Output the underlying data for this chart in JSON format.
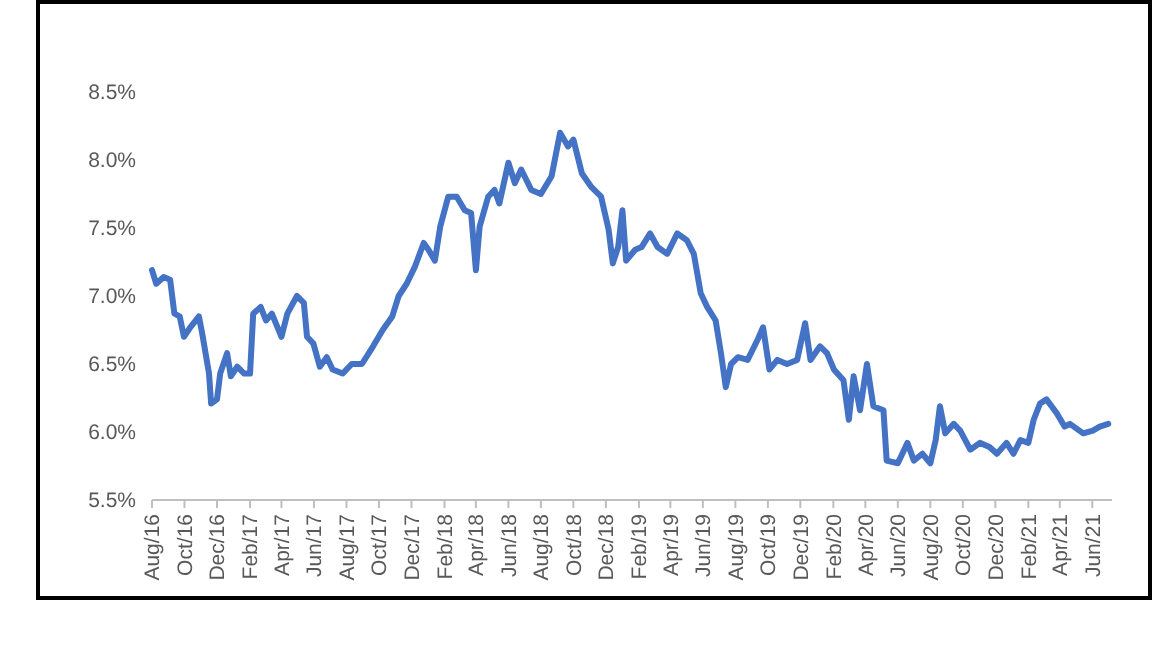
{
  "chart_data": {
    "type": "line",
    "x": [
      "2016-08-01",
      "2016-08-09",
      "2016-08-23",
      "2016-09-04",
      "2016-09-12",
      "2016-09-22",
      "2016-09-30",
      "2016-10-12",
      "2016-10-28",
      "2016-11-03",
      "2016-11-16",
      "2016-11-20",
      "2016-12-01",
      "2016-12-07",
      "2016-12-20",
      "2016-12-27",
      "2017-01-08",
      "2017-01-21",
      "2017-02-01",
      "2017-02-07",
      "2017-02-21",
      "2017-03-03",
      "2017-03-14",
      "2017-04-01",
      "2017-04-12",
      "2017-04-30",
      "2017-05-13",
      "2017-05-19",
      "2017-05-31",
      "2017-06-12",
      "2017-06-25",
      "2017-07-06",
      "2017-07-25",
      "2017-08-11",
      "2017-08-30",
      "2017-09-20",
      "2017-10-08",
      "2017-10-26",
      "2017-11-07",
      "2017-11-22",
      "2017-12-08",
      "2017-12-24",
      "2018-01-02",
      "2018-01-14",
      "2018-01-24",
      "2018-02-08",
      "2018-02-24",
      "2018-03-11",
      "2018-03-23",
      "2018-04-01",
      "2018-04-08",
      "2018-04-24",
      "2018-05-06",
      "2018-05-15",
      "2018-06-01",
      "2018-06-13",
      "2018-06-25",
      "2018-07-14",
      "2018-08-01",
      "2018-08-21",
      "2018-09-06",
      "2018-09-21",
      "2018-10-01",
      "2018-10-17",
      "2018-11-04",
      "2018-11-22",
      "2018-12-06",
      "2018-12-14",
      "2018-12-24",
      "2019-01-01",
      "2019-01-08",
      "2019-01-25",
      "2019-02-06",
      "2019-02-22",
      "2019-03-08",
      "2019-03-26",
      "2019-04-14",
      "2019-05-02",
      "2019-05-15",
      "2019-05-28",
      "2019-06-09",
      "2019-06-25",
      "2019-07-05",
      "2019-07-14",
      "2019-07-24",
      "2019-08-06",
      "2019-08-24",
      "2019-09-12",
      "2019-09-22",
      "2019-10-04",
      "2019-10-19",
      "2019-11-06",
      "2019-11-25",
      "2019-12-10",
      "2019-12-20",
      "2020-01-07",
      "2020-01-20",
      "2020-02-02",
      "2020-02-20",
      "2020-03-01",
      "2020-03-10",
      "2020-03-22",
      "2020-04-04",
      "2020-04-16",
      "2020-05-05",
      "2020-05-11",
      "2020-06-01",
      "2020-06-19",
      "2020-07-01",
      "2020-07-17",
      "2020-08-01",
      "2020-08-11",
      "2020-08-19",
      "2020-08-29",
      "2020-09-14",
      "2020-09-26",
      "2020-10-15",
      "2020-11-02",
      "2020-11-20",
      "2020-12-04",
      "2020-12-22",
      "2021-01-04",
      "2021-01-17",
      "2021-02-01",
      "2021-02-11",
      "2021-02-23",
      "2021-03-07",
      "2021-03-26",
      "2021-04-10",
      "2021-04-20",
      "2021-05-15",
      "2021-06-02",
      "2021-06-15",
      "2021-07-01"
    ],
    "series": [
      {
        "color": "#4472c4",
        "values": [
          7.19,
          7.09,
          7.14,
          7.12,
          6.87,
          6.85,
          6.7,
          6.77,
          6.85,
          6.73,
          6.43,
          6.21,
          6.24,
          6.43,
          6.58,
          6.41,
          6.48,
          6.43,
          6.43,
          6.87,
          6.92,
          6.82,
          6.87,
          6.7,
          6.87,
          7.0,
          6.95,
          6.7,
          6.65,
          6.48,
          6.55,
          6.46,
          6.43,
          6.5,
          6.5,
          6.63,
          6.75,
          6.85,
          7.0,
          7.09,
          7.22,
          7.39,
          7.34,
          7.26,
          7.51,
          7.73,
          7.73,
          7.63,
          7.61,
          7.19,
          7.51,
          7.73,
          7.78,
          7.68,
          7.98,
          7.83,
          7.93,
          7.78,
          7.75,
          7.88,
          8.2,
          8.1,
          8.15,
          7.9,
          7.8,
          7.73,
          7.49,
          7.24,
          7.36,
          7.63,
          7.26,
          7.34,
          7.36,
          7.46,
          7.36,
          7.31,
          7.46,
          7.41,
          7.31,
          7.02,
          6.92,
          6.82,
          6.58,
          6.33,
          6.5,
          6.55,
          6.53,
          6.68,
          6.77,
          6.46,
          6.53,
          6.5,
          6.53,
          6.8,
          6.53,
          6.63,
          6.58,
          6.46,
          6.38,
          6.09,
          6.41,
          6.16,
          6.5,
          6.19,
          6.16,
          5.79,
          5.77,
          5.92,
          5.79,
          5.84,
          5.77,
          5.94,
          6.19,
          5.99,
          6.06,
          6.01,
          5.87,
          5.92,
          5.89,
          5.84,
          5.92,
          5.84,
          5.94,
          5.92,
          6.09,
          6.21,
          6.24,
          6.14,
          6.04,
          6.06,
          5.99,
          6.01,
          6.04,
          6.06
        ]
      }
    ],
    "xlim": [
      "2016-08-01",
      "2021-07-08"
    ],
    "xticks": [
      {
        "value": "2016-08-01",
        "label": "Aug/16"
      },
      {
        "value": "2016-10-01",
        "label": "Oct/16"
      },
      {
        "value": "2016-12-01",
        "label": "Dec/16"
      },
      {
        "value": "2017-02-01",
        "label": "Feb/17"
      },
      {
        "value": "2017-04-01",
        "label": "Apr/17"
      },
      {
        "value": "2017-06-01",
        "label": "Jun/17"
      },
      {
        "value": "2017-08-01",
        "label": "Aug/17"
      },
      {
        "value": "2017-10-01",
        "label": "Oct/17"
      },
      {
        "value": "2017-12-01",
        "label": "Dec/17"
      },
      {
        "value": "2018-02-01",
        "label": "Feb/18"
      },
      {
        "value": "2018-04-01",
        "label": "Apr/18"
      },
      {
        "value": "2018-06-01",
        "label": "Jun/18"
      },
      {
        "value": "2018-08-01",
        "label": "Aug/18"
      },
      {
        "value": "2018-10-01",
        "label": "Oct/18"
      },
      {
        "value": "2018-12-01",
        "label": "Dec/18"
      },
      {
        "value": "2019-02-01",
        "label": "Feb/19"
      },
      {
        "value": "2019-04-01",
        "label": "Apr/19"
      },
      {
        "value": "2019-06-01",
        "label": "Jun/19"
      },
      {
        "value": "2019-08-01",
        "label": "Aug/19"
      },
      {
        "value": "2019-10-01",
        "label": "Oct/19"
      },
      {
        "value": "2019-12-01",
        "label": "Dec/19"
      },
      {
        "value": "2020-02-01",
        "label": "Feb/20"
      },
      {
        "value": "2020-04-01",
        "label": "Apr/20"
      },
      {
        "value": "2020-06-01",
        "label": "Jun/20"
      },
      {
        "value": "2020-08-01",
        "label": "Aug/20"
      },
      {
        "value": "2020-10-01",
        "label": "Oct/20"
      },
      {
        "value": "2020-12-01",
        "label": "Dec/20"
      },
      {
        "value": "2021-02-01",
        "label": "Feb/21"
      },
      {
        "value": "2021-04-01",
        "label": "Apr/21"
      },
      {
        "value": "2021-06-01",
        "label": "Jun/21"
      }
    ],
    "ylim": [
      5.5,
      8.5
    ],
    "yticks": [
      {
        "value": 5.5,
        "label": "5.5%"
      },
      {
        "value": 6.0,
        "label": "6.0%"
      },
      {
        "value": 6.5,
        "label": "6.5%"
      },
      {
        "value": 7.0,
        "label": "7.0%"
      },
      {
        "value": 7.5,
        "label": "7.5%"
      },
      {
        "value": 8.0,
        "label": "8.0%"
      },
      {
        "value": 8.5,
        "label": "8.5%"
      }
    ],
    "grid": false,
    "marker": "none",
    "line_style": "solid"
  }
}
